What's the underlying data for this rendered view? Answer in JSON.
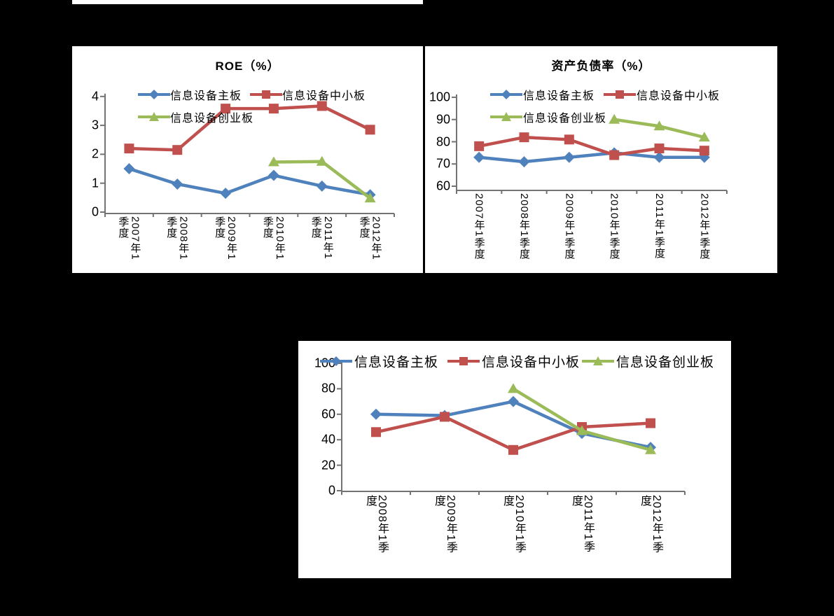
{
  "page": {
    "background_color": "#000000",
    "panel_color": "#ffffff",
    "axis_color": "#737373",
    "text_color": "#000000"
  },
  "chart_data": [
    {
      "type": "line",
      "title": "ROE（%）",
      "xlabel": "",
      "ylabel": "",
      "legend_position": "top-left-two-rows",
      "grid": false,
      "ylim": [
        0,
        4
      ],
      "yticks": [
        0,
        1,
        2,
        3,
        4
      ],
      "categories": [
        "2007年1季度",
        "2008年1季度",
        "2009年1季度",
        "2010年1季度",
        "2011年1季度",
        "2012年1季度"
      ],
      "series": [
        {
          "name": "信息设备主板",
          "color": "#4F81BD",
          "marker": "diamond",
          "values": [
            1.5,
            0.97,
            0.65,
            1.27,
            0.9,
            0.6
          ]
        },
        {
          "name": "信息设备中小板",
          "color": "#C0504D",
          "marker": "square",
          "values": [
            2.2,
            2.15,
            3.58,
            3.58,
            3.67,
            2.85
          ]
        },
        {
          "name": "信息设备创业板",
          "color": "#9BBB59",
          "marker": "triangle",
          "values": [
            null,
            null,
            null,
            1.73,
            1.75,
            0.48
          ]
        }
      ]
    },
    {
      "type": "line",
      "title": "资产负债率（%）",
      "xlabel": "",
      "ylabel": "",
      "legend_position": "top-left-two-rows",
      "grid": false,
      "ylim": [
        60,
        100
      ],
      "yticks": [
        60,
        70,
        80,
        90,
        100
      ],
      "categories": [
        "2007年1季度",
        "2008年1季度",
        "2009年1季度",
        "2010年1季度",
        "2011年1季度",
        "2012年1季度"
      ],
      "series": [
        {
          "name": "信息设备主板",
          "color": "#4F81BD",
          "marker": "diamond",
          "values": [
            73,
            71,
            73,
            75,
            73,
            73
          ]
        },
        {
          "name": "信息设备中小板",
          "color": "#C0504D",
          "marker": "square",
          "values": [
            78,
            82,
            81,
            74,
            77,
            76
          ]
        },
        {
          "name": "信息设备创业板",
          "color": "#9BBB59",
          "marker": "triangle",
          "values": [
            null,
            null,
            null,
            90,
            87,
            82
          ]
        }
      ]
    },
    {
      "type": "line",
      "title": "",
      "xlabel": "",
      "ylabel": "",
      "legend_position": "top-row",
      "grid": false,
      "ylim": [
        0,
        100
      ],
      "yticks": [
        0,
        20,
        40,
        60,
        80,
        100
      ],
      "categories": [
        "2008年1季度",
        "2009年1季度",
        "2010年1季度",
        "2011年1季度",
        "2012年1季度"
      ],
      "series": [
        {
          "name": "信息设备主板",
          "color": "#4F81BD",
          "marker": "diamond",
          "values": [
            60,
            59,
            70,
            45,
            34
          ]
        },
        {
          "name": "信息设备中小板",
          "color": "#C0504D",
          "marker": "square",
          "values": [
            46,
            58,
            32,
            50,
            53
          ]
        },
        {
          "name": "信息设备创业板",
          "color": "#9BBB59",
          "marker": "triangle",
          "values": [
            null,
            null,
            80,
            47,
            32
          ]
        }
      ]
    }
  ]
}
